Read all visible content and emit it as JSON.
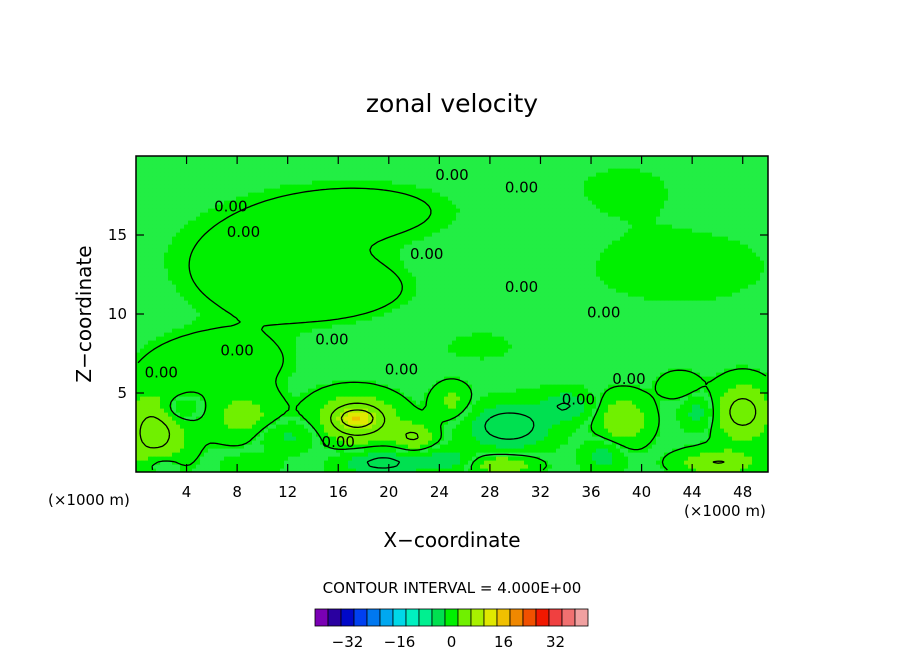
{
  "chart_data": {
    "type": "heatmap",
    "title": "zonal velocity",
    "xlabel": "X−coordinate",
    "ylabel": "Z−coordinate",
    "x_unit": "(×1000 m)",
    "x_ticks": [
      4,
      8,
      12,
      16,
      20,
      24,
      28,
      32,
      36,
      40,
      44,
      48
    ],
    "y_ticks": [
      5,
      10,
      15
    ],
    "xlim": [
      0,
      50
    ],
    "ylim": [
      0,
      20
    ],
    "contour_interval_text": "CONTOUR INTERVAL = 4.000E+00",
    "contour_label": "0.00",
    "contour_labels": [
      {
        "x": 7.5,
        "z": 16.8
      },
      {
        "x": 8.5,
        "z": 15.2
      },
      {
        "x": 25.0,
        "z": 18.8
      },
      {
        "x": 30.5,
        "z": 18.0
      },
      {
        "x": 23.0,
        "z": 13.8
      },
      {
        "x": 30.5,
        "z": 11.7
      },
      {
        "x": 37.0,
        "z": 10.1
      },
      {
        "x": 15.5,
        "z": 8.4
      },
      {
        "x": 8.0,
        "z": 7.7
      },
      {
        "x": 2.0,
        "z": 6.3
      },
      {
        "x": 21.0,
        "z": 6.5
      },
      {
        "x": 39.0,
        "z": 5.9
      },
      {
        "x": 35.0,
        "z": 4.6
      },
      {
        "x": 16.0,
        "z": 1.9
      }
    ],
    "colorbar": {
      "colors": [
        "#7a00b4",
        "#2a00a0",
        "#0008c8",
        "#0040f0",
        "#0078f0",
        "#00a8f0",
        "#00d8e8",
        "#00f0c0",
        "#00f090",
        "#00e050",
        "#00f000",
        "#70f000",
        "#a8f000",
        "#e0e800",
        "#f0c000",
        "#f08800",
        "#f05000",
        "#f01800",
        "#f04040",
        "#f07070",
        "#f0a0a0"
      ],
      "ticks": [
        -32,
        -16,
        0,
        16,
        32
      ],
      "vmin": -42,
      "vmax": 42
    },
    "background_level_color": "#22ee44",
    "features": [
      {
        "x": 8.5,
        "z": 13.5,
        "rx": 8,
        "rz": 3.5,
        "u": 0.6
      },
      {
        "x": 15,
        "z": 11.5,
        "rx": 7,
        "rz": 2,
        "u": 1.0
      },
      {
        "x": 18,
        "z": 16.5,
        "rx": 9,
        "rz": 2.3,
        "u": 0.7
      },
      {
        "x": 43,
        "z": 13,
        "rx": 9,
        "rz": 3,
        "u": -0.6
      },
      {
        "x": 38.5,
        "z": 18,
        "rx": 5,
        "rz": 2,
        "u": -0.5
      },
      {
        "x": 27,
        "z": 8,
        "rx": 7,
        "rz": 2.2,
        "u": -0.4
      },
      {
        "x": 6.5,
        "z": 7,
        "rx": 6,
        "rz": 2,
        "u": 1.0
      },
      {
        "x": 1.5,
        "z": 2.5,
        "rx": 2.5,
        "rz": 2.5,
        "u": 5
      },
      {
        "x": 17.5,
        "z": 3.3,
        "rx": 3,
        "rz": 1.5,
        "u": 6
      },
      {
        "x": 17.5,
        "z": 3.4,
        "rx": 1.2,
        "rz": 0.5,
        "u": 9
      },
      {
        "x": 22,
        "z": 2.2,
        "rx": 1.6,
        "rz": 0.9,
        "u": 4
      },
      {
        "x": 8.5,
        "z": 3.5,
        "rx": 2.5,
        "rz": 1.5,
        "u": 3
      },
      {
        "x": 38.5,
        "z": 3.3,
        "rx": 2,
        "rz": 1.5,
        "u": 4
      },
      {
        "x": 48,
        "z": 3.8,
        "rx": 2.2,
        "rz": 1.8,
        "u": 5
      },
      {
        "x": 46,
        "z": 0.6,
        "rx": 3,
        "rz": 0.8,
        "u": 4
      },
      {
        "x": 29,
        "z": 0.5,
        "rx": 2.5,
        "rz": 0.6,
        "u": 4
      },
      {
        "x": 3.5,
        "z": 4,
        "rx": 1.5,
        "rz": 0.8,
        "u": -3
      },
      {
        "x": 29.5,
        "z": 2.9,
        "rx": 3,
        "rz": 1.3,
        "u": -6
      },
      {
        "x": 34,
        "z": 4.2,
        "rx": 2,
        "rz": 0.9,
        "u": -4
      },
      {
        "x": 19.5,
        "z": 0.6,
        "rx": 3,
        "rz": 0.8,
        "u": -5
      },
      {
        "x": 24.5,
        "z": 0.8,
        "rx": 2,
        "rz": 0.7,
        "u": -3.5
      },
      {
        "x": 37,
        "z": 1,
        "rx": 1.5,
        "rz": 1,
        "u": -3
      },
      {
        "x": 44.5,
        "z": 3.8,
        "rx": 1.2,
        "rz": 1,
        "u": -3
      },
      {
        "x": 12,
        "z": 2.3,
        "rx": 2.5,
        "rz": 0.9,
        "u": -2.5
      },
      {
        "x": 9,
        "z": 0.5,
        "rx": 2,
        "rz": 0.6,
        "u": -2
      },
      {
        "x": 2,
        "z": 0.5,
        "rx": 1.5,
        "rz": 0.7,
        "u": -2.5
      },
      {
        "x": 25,
        "z": 4.5,
        "rx": 1.5,
        "rz": 1.2,
        "u": 2.5
      },
      {
        "x": 43,
        "z": 5.5,
        "rx": 1.5,
        "rz": 0.8,
        "u": 2
      }
    ]
  }
}
